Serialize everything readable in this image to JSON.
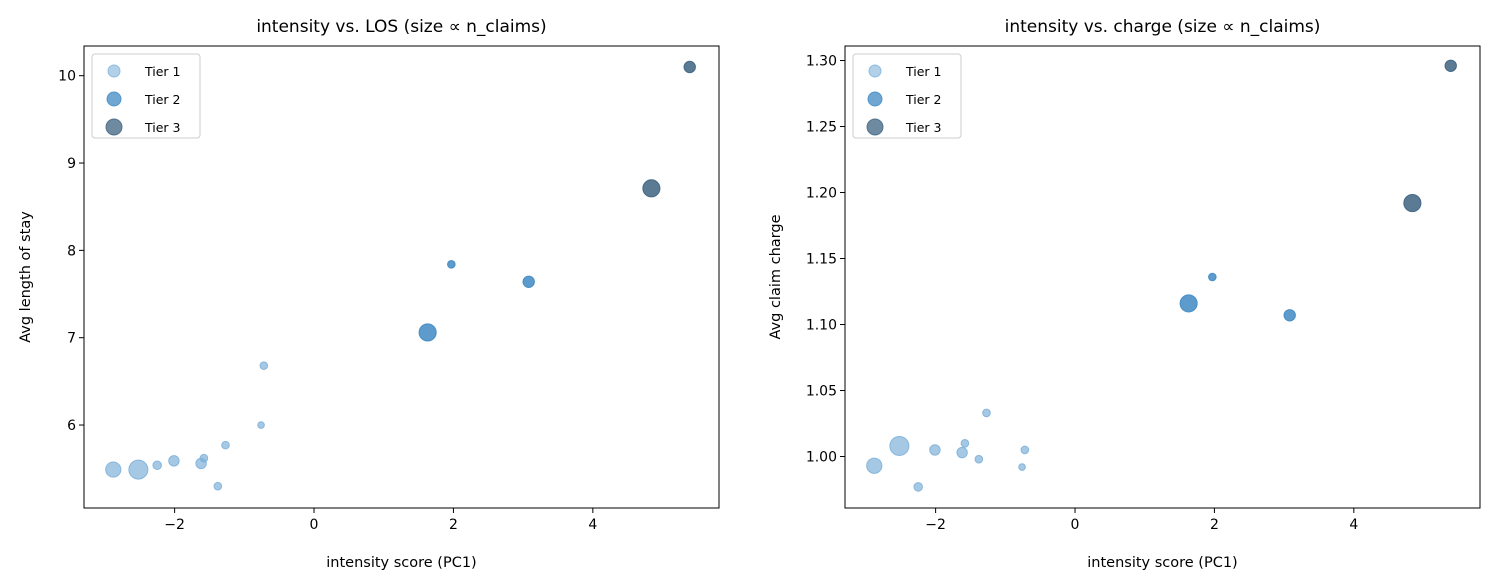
{
  "chart_data": [
    {
      "type": "scatter",
      "title": "intensity vs. LOS (size ∝ n_claims)",
      "xlabel": "intensity score (PC1)",
      "ylabel": "Avg length of stay",
      "xlim": [
        -3.3,
        5.81
      ],
      "ylim": [
        5.05,
        10.34
      ],
      "xticks": [
        -2,
        0,
        2,
        4
      ],
      "xtick_labels": [
        "−2",
        "0",
        "2",
        "4"
      ],
      "yticks": [
        6,
        7,
        8,
        9,
        10
      ],
      "ytick_labels": [
        "6",
        "7",
        "8",
        "9",
        "10"
      ],
      "legend_placement": "top-left",
      "grid": false,
      "series": [
        {
          "name": "Tier 1",
          "color": "#7fb1d9",
          "x": [
            -2.88,
            -2.52,
            -2.25,
            -2.01,
            -1.62,
            -1.58,
            -1.38,
            -1.27,
            -0.76,
            -0.72
          ],
          "y": [
            5.49,
            5.49,
            5.54,
            5.59,
            5.56,
            5.62,
            5.3,
            5.77,
            6.0,
            6.68
          ],
          "n_claims_rel": [
            64,
            100,
            20,
            30,
            30,
            16,
            16,
            16,
            12,
            16
          ]
        },
        {
          "name": "Tier 2",
          "color": "#3f89c3",
          "x": [
            1.63,
            1.97,
            3.08
          ],
          "y": [
            7.06,
            7.84,
            7.64
          ],
          "n_claims_rel": [
            81,
            16,
            36
          ]
        },
        {
          "name": "Tier 3",
          "color": "#3e6381",
          "x": [
            4.84,
            5.39
          ],
          "y": [
            8.71,
            10.1
          ],
          "n_claims_rel": [
            81,
            36
          ]
        }
      ]
    },
    {
      "type": "scatter",
      "title": "intensity vs. charge (size ∝ n_claims)",
      "xlabel": "intensity score (PC1)",
      "ylabel": "Avg claim charge",
      "xlim": [
        -3.3,
        5.81
      ],
      "ylim": [
        0.961,
        1.311
      ],
      "xticks": [
        -2,
        0,
        2,
        4
      ],
      "xtick_labels": [
        "−2",
        "0",
        "2",
        "4"
      ],
      "yticks": [
        1.0,
        1.05,
        1.1,
        1.15,
        1.2,
        1.25,
        1.3
      ],
      "ytick_labels": [
        "1.00",
        "1.05",
        "1.10",
        "1.15",
        "1.20",
        "1.25",
        "1.30"
      ],
      "legend_placement": "top-left",
      "grid": false,
      "series": [
        {
          "name": "Tier 1",
          "color": "#7fb1d9",
          "x": [
            -2.88,
            -2.52,
            -2.25,
            -2.01,
            -1.62,
            -1.58,
            -1.38,
            -1.27,
            -0.76,
            -0.72
          ],
          "y": [
            0.993,
            1.008,
            0.977,
            1.005,
            1.003,
            1.01,
            0.998,
            1.033,
            0.992,
            1.005
          ],
          "n_claims_rel": [
            64,
            100,
            20,
            30,
            30,
            16,
            16,
            16,
            12,
            16
          ]
        },
        {
          "name": "Tier 2",
          "color": "#3f89c3",
          "x": [
            1.63,
            1.97,
            3.08
          ],
          "y": [
            1.116,
            1.136,
            1.107
          ],
          "n_claims_rel": [
            81,
            16,
            36
          ]
        },
        {
          "name": "Tier 3",
          "color": "#3e6381",
          "x": [
            4.84,
            5.39
          ],
          "y": [
            1.192,
            1.296
          ],
          "n_claims_rel": [
            81,
            36
          ]
        }
      ]
    }
  ]
}
